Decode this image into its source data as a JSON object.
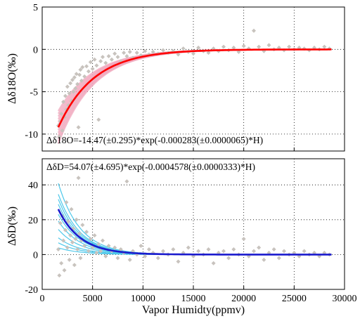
{
  "chart_data": [
    {
      "type": "scatter",
      "ylabel": "Δδ18O(‰)",
      "annotation": "Δδ18O=-14.47(±0.295)*exp(-0.000283(±0.0000065)*H)",
      "xlim": [
        0,
        30000
      ],
      "ylim": [
        -12,
        5
      ],
      "yticks": [
        5,
        0,
        -5,
        -10
      ],
      "grid": true,
      "fit": {
        "a": -14.47,
        "b": 0.000283,
        "x_start": 1600,
        "x_end": 28700,
        "color": "#ff0000"
      },
      "band_color": "#f0a8be",
      "scatter_color": "#c8c3be",
      "points": [
        [
          1600,
          -9.0
        ],
        [
          1700,
          -10.3
        ],
        [
          1800,
          -8.5
        ],
        [
          1900,
          -7.6
        ],
        [
          2000,
          -9.6
        ],
        [
          2100,
          -6.2
        ],
        [
          2200,
          -8.0
        ],
        [
          2300,
          -5.5
        ],
        [
          2400,
          -7.1
        ],
        [
          2500,
          -4.4
        ],
        [
          2600,
          -6.6
        ],
        [
          2700,
          -5.2
        ],
        [
          2800,
          -4.0
        ],
        [
          2900,
          -6.1
        ],
        [
          3000,
          -3.6
        ],
        [
          3100,
          -5.0
        ],
        [
          3200,
          -3.3
        ],
        [
          3300,
          -4.6
        ],
        [
          3400,
          -2.9
        ],
        [
          3500,
          -4.1
        ],
        [
          3600,
          -9.2
        ],
        [
          3700,
          -3.0
        ],
        [
          3800,
          -2.4
        ],
        [
          3900,
          -3.7
        ],
        [
          4000,
          -2.1
        ],
        [
          4200,
          -3.2
        ],
        [
          4400,
          -2.0
        ],
        [
          4600,
          -2.6
        ],
        [
          4800,
          -1.5
        ],
        [
          5000,
          -2.3
        ],
        [
          5200,
          -1.2
        ],
        [
          5400,
          -1.9
        ],
        [
          5600,
          -8.3
        ],
        [
          5800,
          -1.4
        ],
        [
          6000,
          -0.9
        ],
        [
          6300,
          -1.6
        ],
        [
          6600,
          -0.8
        ],
        [
          6900,
          -1.2
        ],
        [
          7200,
          -0.5
        ],
        [
          7500,
          -0.9
        ],
        [
          7800,
          -1.4
        ],
        [
          8100,
          -0.4
        ],
        [
          8400,
          -0.8
        ],
        [
          8700,
          -0.3
        ],
        [
          9000,
          -1.0
        ],
        [
          9400,
          -0.4
        ],
        [
          9800,
          -0.7
        ],
        [
          10200,
          -0.2
        ],
        [
          10600,
          -0.6
        ],
        [
          11000,
          -0.3
        ],
        [
          11500,
          -0.5
        ],
        [
          12000,
          -0.1
        ],
        [
          12500,
          -0.4
        ],
        [
          13000,
          -0.2
        ],
        [
          13500,
          -0.6
        ],
        [
          14000,
          0.1
        ],
        [
          14500,
          -0.3
        ],
        [
          15000,
          -0.5
        ],
        [
          15500,
          0.2
        ],
        [
          16000,
          -0.2
        ],
        [
          16500,
          -0.4
        ],
        [
          17000,
          0.1
        ],
        [
          17500,
          -0.2
        ],
        [
          18000,
          0.3
        ],
        [
          18500,
          -0.1
        ],
        [
          19000,
          0.2
        ],
        [
          19500,
          -0.3
        ],
        [
          20000,
          0.4
        ],
        [
          20500,
          0.1
        ],
        [
          21000,
          2.2
        ],
        [
          21500,
          0.3
        ],
        [
          22000,
          -0.2
        ],
        [
          22500,
          0.5
        ],
        [
          23000,
          0.0
        ],
        [
          23500,
          0.2
        ],
        [
          24000,
          -0.1
        ],
        [
          24500,
          0.3
        ],
        [
          25000,
          0.0
        ],
        [
          25500,
          0.2
        ],
        [
          26000,
          0.1
        ],
        [
          26500,
          -0.1
        ],
        [
          27000,
          0.2
        ],
        [
          27500,
          0.0
        ],
        [
          28000,
          0.3
        ],
        [
          28500,
          0.1
        ]
      ]
    },
    {
      "type": "scatter",
      "xlabel": "Vapor Humidty(ppmv)",
      "ylabel": "ΔδD(‰)",
      "annotation": "ΔδD=54.07(±4.695)*exp(-0.0004578(±0.0000333)*H)",
      "xlim": [
        0,
        30000
      ],
      "ylim": [
        -20,
        55
      ],
      "yticks": [
        40,
        20,
        0,
        -20
      ],
      "xticks": [
        0,
        5000,
        10000,
        15000,
        20000,
        25000,
        30000
      ],
      "grid": true,
      "fit": {
        "a": 54.07,
        "b": 0.0004578,
        "x_start": 1600,
        "x_end": 28700,
        "color": "#1a1acd"
      },
      "band_color": "#4ec8ea",
      "band_amplitudes": [
        30,
        40,
        48,
        60,
        66,
        72,
        85
      ],
      "scatter_color": "#c8c3be",
      "points": [
        [
          1600,
          3
        ],
        [
          1700,
          -12
        ],
        [
          1800,
          18
        ],
        [
          1900,
          -5
        ],
        [
          2000,
          22
        ],
        [
          2100,
          8
        ],
        [
          2200,
          -9
        ],
        [
          2300,
          14
        ],
        [
          2400,
          30
        ],
        [
          2500,
          4
        ],
        [
          2600,
          19
        ],
        [
          2700,
          -3
        ],
        [
          2800,
          11
        ],
        [
          2900,
          26
        ],
        [
          3000,
          7
        ],
        [
          3100,
          15
        ],
        [
          3200,
          -6
        ],
        [
          3300,
          9
        ],
        [
          3400,
          20
        ],
        [
          3500,
          3
        ],
        [
          3600,
          44
        ],
        [
          3700,
          12
        ],
        [
          3800,
          -2
        ],
        [
          3900,
          8
        ],
        [
          4000,
          17
        ],
        [
          4200,
          5
        ],
        [
          4400,
          13
        ],
        [
          4600,
          2
        ],
        [
          4800,
          9
        ],
        [
          5000,
          4
        ],
        [
          5200,
          11
        ],
        [
          5400,
          1
        ],
        [
          5600,
          6
        ],
        [
          5800,
          2
        ],
        [
          6000,
          8
        ],
        [
          6300,
          -1
        ],
        [
          6600,
          5
        ],
        [
          6900,
          2
        ],
        [
          7200,
          4
        ],
        [
          7500,
          -2
        ],
        [
          7800,
          3
        ],
        [
          8100,
          1
        ],
        [
          8400,
          42
        ],
        [
          8700,
          -3
        ],
        [
          9000,
          2
        ],
        [
          9400,
          0
        ],
        [
          9800,
          5
        ],
        [
          10200,
          -1
        ],
        [
          10600,
          3
        ],
        [
          11000,
          1
        ],
        [
          11500,
          -2
        ],
        [
          12000,
          2
        ],
        [
          12500,
          0
        ],
        [
          13000,
          3
        ],
        [
          13500,
          -4
        ],
        [
          14000,
          1
        ],
        [
          14500,
          4
        ],
        [
          15000,
          -1
        ],
        [
          15500,
          2
        ],
        [
          16000,
          0
        ],
        [
          16500,
          3
        ],
        [
          17000,
          -5
        ],
        [
          17500,
          1
        ],
        [
          18000,
          2
        ],
        [
          18500,
          -2
        ],
        [
          19000,
          3
        ],
        [
          19500,
          0
        ],
        [
          20000,
          9
        ],
        [
          20500,
          -1
        ],
        [
          21000,
          2
        ],
        [
          21500,
          4
        ],
        [
          22000,
          -3
        ],
        [
          22500,
          1
        ],
        [
          23000,
          3
        ],
        [
          23500,
          -2
        ],
        [
          24000,
          2
        ],
        [
          24500,
          0
        ],
        [
          25000,
          1
        ],
        [
          25500,
          -1
        ],
        [
          26000,
          2
        ],
        [
          26500,
          0
        ],
        [
          27000,
          1
        ],
        [
          27500,
          -1
        ],
        [
          28000,
          1
        ],
        [
          28500,
          0
        ]
      ]
    }
  ]
}
